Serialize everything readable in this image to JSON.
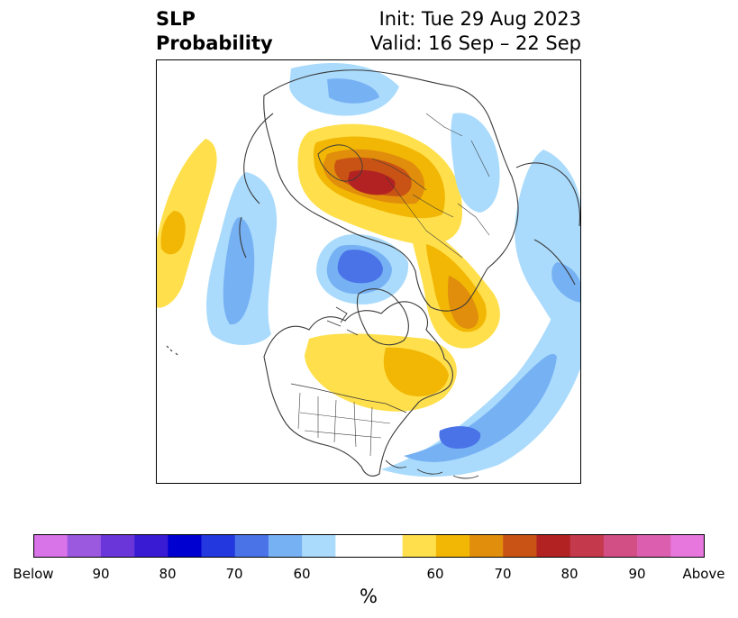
{
  "header": {
    "title_line1": "SLP",
    "title_line2": "Probability",
    "init_line": "Init: Tue 29 Aug 2023",
    "valid_line": "Valid: 16 Sep – 22 Sep"
  },
  "map": {
    "projection": "north-polar-stereographic",
    "features": [
      "coastlines",
      "country-borders",
      "us-state-borders",
      "canada-province-borders"
    ],
    "anomaly_regions": [
      {
        "region": "Europe / Scandinavia",
        "category": "Above",
        "peak_percent": 80
      },
      {
        "region": "Western Siberia",
        "category": "Above",
        "peak_percent": 70
      },
      {
        "region": "Central Canada / Northern US",
        "category": "Above",
        "peak_percent": 60
      },
      {
        "region": "Eastern North Pacific",
        "category": "Above",
        "peak_percent": 60
      },
      {
        "region": "Northern Atlantic / Greenland Sea",
        "category": "Below",
        "peak_percent": 70
      },
      {
        "region": "Western North Atlantic",
        "category": "Below",
        "peak_percent": 70
      },
      {
        "region": "Northwest Pacific",
        "category": "Below",
        "peak_percent": 60
      },
      {
        "region": "Northern Africa / Arabia",
        "category": "Below",
        "peak_percent": 60
      },
      {
        "region": "Eastern Siberia",
        "category": "Below",
        "peak_percent": 60
      }
    ]
  },
  "colorbar": {
    "label": "%",
    "ticks": [
      "Below",
      "90",
      "80",
      "70",
      "60",
      "60",
      "70",
      "80",
      "90",
      "Above"
    ],
    "colors": [
      "#d873e8",
      "#9b59e0",
      "#6a36d9",
      "#3a1bd4",
      "#0000d0",
      "#2338de",
      "#4a73e8",
      "#76b1f4",
      "#aadbfc",
      "#ffffff",
      "#ffe04c",
      "#f2b705",
      "#e08e0b",
      "#c95314",
      "#b22222",
      "#c4394c",
      "#d24f86",
      "#db5fae",
      "#e877dd"
    ]
  }
}
